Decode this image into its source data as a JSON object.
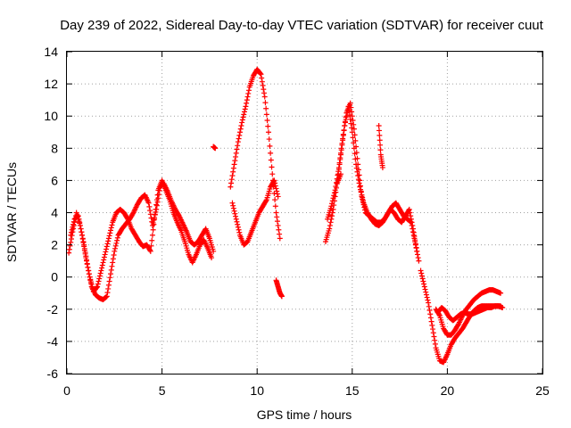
{
  "chart_data": {
    "type": "scatter",
    "title": "Day 239 of 2022, Sidereal Day-to-day VTEC variation (SDTVAR) for receiver cuut",
    "xlabel": "GPS time / hours",
    "ylabel": "SDTVAR / TECUs",
    "xlim": [
      0,
      25
    ],
    "ylim": [
      -6,
      14
    ],
    "xticks": [
      0,
      5,
      10,
      15,
      20,
      25
    ],
    "yticks": [
      -6,
      -4,
      -2,
      0,
      2,
      4,
      6,
      8,
      10,
      12,
      14
    ],
    "xtick_labels": [
      "0",
      "5",
      "10",
      "15",
      "20",
      "25"
    ],
    "ytick_labels": [
      "-6",
      "-4",
      "-2",
      "0",
      "2",
      "4",
      "6",
      "8",
      "10",
      "12",
      "14"
    ],
    "grid": true,
    "marker": "+",
    "color": "#ff0000",
    "series": [
      {
        "name": "cuut-a",
        "x": [
          0.1,
          0.3,
          0.5,
          0.7,
          0.9,
          1.1,
          1.3,
          1.5,
          1.7,
          1.9,
          2.1,
          2.3,
          2.5,
          2.7,
          2.9,
          3.1,
          3.3,
          3.5,
          3.7,
          3.9,
          4.1,
          4.3,
          4.5,
          4.7,
          4.9,
          5.1,
          5.3,
          5.5,
          5.7,
          5.9,
          6.1,
          6.3,
          6.5,
          6.7,
          6.9,
          7.1,
          7.3,
          7.5,
          7.7
        ],
        "y": [
          1.5,
          2.8,
          4.0,
          3.2,
          2.0,
          0.6,
          -0.6,
          -1.1,
          -1.3,
          -1.4,
          -1.2,
          0.2,
          1.6,
          2.6,
          3.0,
          3.3,
          3.6,
          4.0,
          4.5,
          4.9,
          5.1,
          4.6,
          3.2,
          4.2,
          5.6,
          5.8,
          5.3,
          4.7,
          4.2,
          3.8,
          3.3,
          2.8,
          2.2,
          2.0,
          2.2,
          2.6,
          3.0,
          2.4,
          1.6
        ]
      },
      {
        "name": "cuut-b",
        "x": [
          0.2,
          0.4,
          0.6,
          0.8,
          1.0,
          1.2,
          1.4,
          1.6,
          1.8,
          2.0,
          2.2,
          2.4,
          2.6,
          2.8,
          3.0,
          3.2,
          3.4,
          3.6,
          3.8,
          4.0,
          4.2,
          4.4,
          4.6,
          4.8,
          5.0,
          5.2,
          5.4,
          5.6,
          5.8,
          6.0,
          6.2,
          6.4,
          6.6,
          6.8,
          7.0,
          7.2,
          7.4,
          7.6
        ],
        "y": [
          2.6,
          3.6,
          3.8,
          2.6,
          1.2,
          0.0,
          -0.9,
          -0.6,
          0.4,
          1.4,
          2.4,
          3.4,
          4.0,
          4.2,
          4.0,
          3.6,
          3.0,
          2.6,
          2.2,
          1.9,
          2.0,
          1.6,
          3.6,
          5.4,
          6.0,
          5.4,
          4.8,
          4.0,
          3.4,
          2.9,
          2.2,
          1.4,
          0.9,
          1.4,
          2.0,
          2.3,
          1.8,
          1.2
        ]
      },
      {
        "name": "cuut-c",
        "x": [
          8.6,
          8.8,
          9.0,
          9.2,
          9.4,
          9.6,
          9.8,
          10.0,
          10.2,
          10.4,
          10.6,
          10.8,
          11.0,
          11.2,
          13.6,
          13.8,
          14.0,
          14.2,
          14.4,
          14.6,
          14.8,
          15.0,
          15.2,
          15.4,
          15.6,
          15.8,
          16.0,
          16.2,
          16.4,
          16.6,
          16.8,
          17.0,
          17.2,
          17.4,
          17.6,
          17.8,
          18.0,
          18.2,
          18.4
        ],
        "y": [
          5.6,
          7.0,
          8.4,
          9.6,
          10.6,
          11.8,
          12.5,
          12.9,
          12.6,
          11.2,
          9.0,
          6.4,
          4.0,
          2.4,
          2.2,
          3.0,
          4.2,
          5.8,
          7.6,
          9.4,
          10.6,
          9.0,
          7.0,
          5.6,
          4.6,
          4.0,
          3.6,
          3.3,
          3.2,
          3.4,
          3.8,
          4.2,
          4.0,
          3.6,
          3.4,
          3.8,
          4.2,
          3.0,
          1.6
        ]
      },
      {
        "name": "cuut-d",
        "x": [
          8.7,
          8.9,
          9.1,
          9.3,
          9.5,
          9.7,
          9.9,
          10.1,
          10.3,
          10.5,
          10.7,
          10.9,
          11.1,
          13.7,
          13.9,
          14.1,
          14.3,
          14.5,
          14.7,
          14.9,
          15.1,
          15.3,
          15.5,
          15.7,
          15.9,
          16.1,
          16.3,
          16.5,
          16.7,
          16.9,
          17.1,
          17.3,
          17.5,
          17.7,
          17.9,
          18.1,
          18.3,
          18.5
        ],
        "y": [
          4.6,
          3.6,
          2.6,
          2.0,
          2.2,
          2.8,
          3.4,
          4.0,
          4.4,
          4.8,
          5.6,
          6.0,
          5.0,
          3.6,
          4.4,
          5.4,
          6.8,
          8.6,
          10.2,
          10.8,
          9.2,
          7.0,
          5.0,
          4.0,
          3.8,
          3.6,
          3.4,
          3.4,
          3.6,
          4.0,
          4.4,
          4.6,
          4.2,
          3.8,
          3.6,
          3.4,
          2.2,
          1.0
        ]
      },
      {
        "name": "cuut-e",
        "x": [
          18.6,
          18.8,
          19.0,
          19.2,
          19.4,
          19.6,
          19.8,
          20.0,
          20.2,
          20.4,
          20.6,
          20.8,
          21.0,
          21.2,
          21.4,
          21.6,
          21.8,
          22.0,
          22.2,
          22.4,
          22.6,
          22.8
        ],
        "y": [
          0.4,
          -0.6,
          -1.6,
          -3.0,
          -4.4,
          -5.2,
          -5.3,
          -4.8,
          -4.2,
          -3.8,
          -3.5,
          -3.2,
          -2.8,
          -2.4,
          -2.1,
          -1.9,
          -1.8,
          -1.8,
          -1.8,
          -1.8,
          -1.8,
          -1.8
        ]
      },
      {
        "name": "cuut-f",
        "x": [
          19.4,
          19.6,
          19.8,
          20.0,
          20.2,
          20.4,
          20.6,
          20.8,
          21.0,
          21.2,
          21.4,
          21.6,
          21.8,
          22.0,
          22.2,
          22.4,
          22.6,
          22.8
        ],
        "y": [
          -2.0,
          -2.4,
          -3.2,
          -3.6,
          -3.6,
          -3.3,
          -2.9,
          -2.4,
          -2.0,
          -1.7,
          -1.4,
          -1.2,
          -1.0,
          -0.9,
          -0.8,
          -0.8,
          -0.9,
          -1.0
        ]
      },
      {
        "name": "cuut-g",
        "x": [
          19.5,
          19.7,
          19.9,
          20.1,
          20.3,
          20.5,
          20.7,
          20.9,
          21.1,
          21.3,
          21.5,
          21.7,
          21.9,
          22.1,
          22.3,
          22.5,
          22.7,
          22.9
        ],
        "y": [
          -2.2,
          -1.9,
          -2.1,
          -2.5,
          -2.7,
          -2.5,
          -2.3,
          -2.2,
          -2.3,
          -2.3,
          -2.2,
          -2.1,
          -2.0,
          -1.9,
          -1.9,
          -1.8,
          -1.8,
          -1.9
        ]
      },
      {
        "name": "cuut-h",
        "x": [
          7.7,
          7.8,
          11.0,
          11.1,
          11.2,
          11.3,
          14.2,
          14.4,
          16.4,
          16.5,
          16.6
        ],
        "y": [
          8.1,
          8.0,
          -0.2,
          -0.6,
          -1.0,
          -1.2,
          5.8,
          6.4,
          9.4,
          7.6,
          6.8
        ]
      }
    ]
  }
}
